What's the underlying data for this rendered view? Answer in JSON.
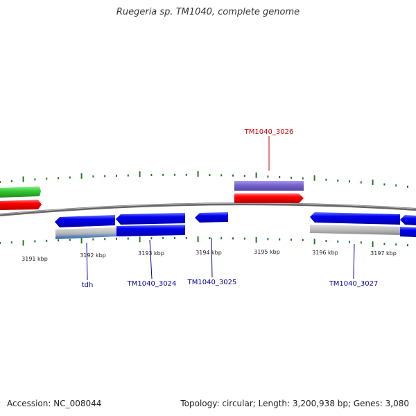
{
  "title": "Ruegeria sp. TM1040, complete genome",
  "footer": {
    "accession": "Accession: NC_008044",
    "summary": "Topology: circular; Length: 3,200,938 bp; Genes: 3,080"
  },
  "ticks": [
    "3191 kbp",
    "3192 kbp",
    "3193 kbp",
    "3194 kbp",
    "3195 kbp",
    "3196 kbp",
    "3197 kbp"
  ],
  "gene_labels": [
    {
      "text": "TM1040_3026",
      "color": "#cc0000"
    },
    {
      "text": "tdh",
      "color": "#000099"
    },
    {
      "text": "TM1040_3024",
      "color": "#000099"
    },
    {
      "text": "TM1040_3025",
      "color": "#000099"
    },
    {
      "text": "TM1040_3027",
      "color": "#000099"
    }
  ],
  "colors": {
    "cds_forward": "#ff0000",
    "cds_reverse": "#0000ee",
    "gene_forward": "#33cc33",
    "misc_feature": "#7766cc",
    "other_feature": "#bbbbbb",
    "backbone": "#777777",
    "tick": "#227722"
  }
}
